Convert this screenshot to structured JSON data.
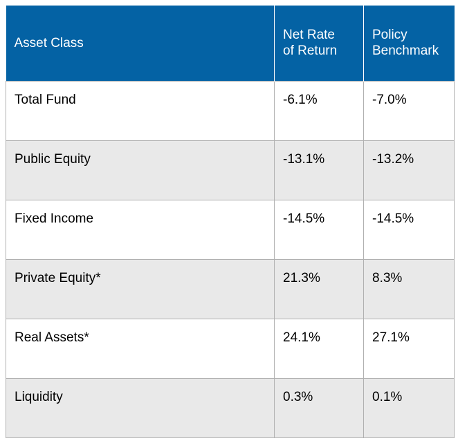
{
  "header": {
    "asset_class": "Asset Class",
    "net_rate_line1": "Net Rate",
    "net_rate_line2": "of Return",
    "policy_line1": "Policy",
    "policy_line2": "Benchmark"
  },
  "rows": [
    {
      "asset": "Total Fund",
      "net": "-6.1%",
      "benchmark": "-7.0%"
    },
    {
      "asset": "Public Equity",
      "net": "-13.1%",
      "benchmark": "-13.2%"
    },
    {
      "asset": "Fixed Income",
      "net": "-14.5%",
      "benchmark": "-14.5%"
    },
    {
      "asset": "Private Equity*",
      "net": "21.3%",
      "benchmark": "8.3%"
    },
    {
      "asset": "Real Assets*",
      "net": "24.1%",
      "benchmark": "27.1%"
    },
    {
      "asset": "Liquidity",
      "net": "0.3%",
      "benchmark": "0.1%"
    }
  ],
  "colors": {
    "header_bg": "#0462a4",
    "alt_row_bg": "#e9e9e9",
    "border": "#b0b0b0"
  }
}
